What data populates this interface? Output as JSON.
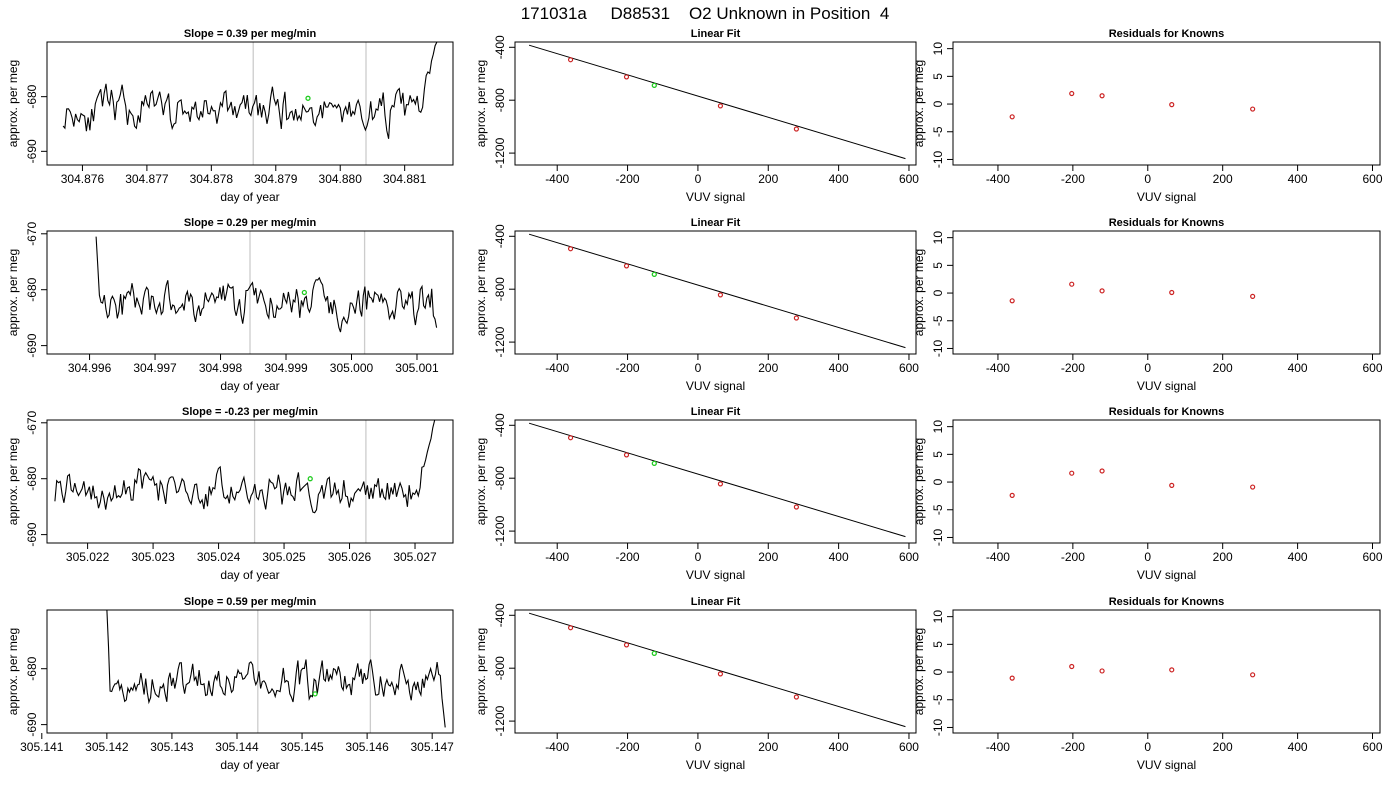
{
  "figure": {
    "title": "171031a     D88531    O2 Unknown in Position  4"
  },
  "colors": {
    "trace": "#000000",
    "marker_unknown": "#22cc22",
    "marker_known": "#cc2222",
    "vline": "#cccccc"
  },
  "chart_data": [
    {
      "type": "line",
      "title": "Slope =  0.39  per meg/min",
      "xlabel": "day of year",
      "ylabel": "approx. per meg",
      "xticks": [
        "304.876",
        "304.877",
        "304.878",
        "304.879",
        "304.880",
        "304.881"
      ],
      "xtick_values": [
        304.876,
        304.877,
        304.878,
        304.879,
        304.88,
        304.881
      ],
      "xlim": [
        304.87545,
        304.88175
      ],
      "yticks": [
        -690,
        -680
      ],
      "ylim": [
        -692.5,
        -670
      ],
      "x_start": 304.8757,
      "x_end": 304.8815,
      "base": -682.5,
      "amplitude": 2.8,
      "seed": 11,
      "head": [],
      "tail_rise": true,
      "tail_end": -669.5,
      "vlines": [
        304.87865,
        304.8804
      ],
      "marker": {
        "x": 304.8795,
        "y": -680.3
      }
    },
    {
      "type": "line",
      "title": "Slope =  0.29  per meg/min",
      "xlabel": "day of year",
      "ylabel": "approx. per meg",
      "xticks": [
        "304.996",
        "304.997",
        "304.998",
        "304.999",
        "305.000",
        "305.001"
      ],
      "xtick_values": [
        304.996,
        304.997,
        304.998,
        304.999,
        305.0,
        305.001
      ],
      "xlim": [
        304.99535,
        305.00155
      ],
      "yticks": [
        -690,
        -680,
        -670
      ],
      "ylim": [
        -691.5,
        -669.5
      ],
      "x_start": 304.9961,
      "x_end": 305.0013,
      "base": -682.5,
      "amplitude": 2.6,
      "seed": 23,
      "head": [
        -670.5,
        -675.5,
        -681.0
      ],
      "tail_rise": false,
      "tail_end": -686.8,
      "vlines": [
        304.99845,
        305.0002
      ],
      "marker": {
        "x": 304.99928,
        "y": -680.5
      }
    },
    {
      "type": "line",
      "title": "Slope =  -0.23  per meg/min",
      "xlabel": "day of year",
      "ylabel": "approx. per meg",
      "xticks": [
        "305.022",
        "305.023",
        "305.024",
        "305.025",
        "305.026",
        "305.027"
      ],
      "xtick_values": [
        305.022,
        305.023,
        305.024,
        305.025,
        305.026,
        305.027
      ],
      "xlim": [
        305.02138,
        305.02758
      ],
      "yticks": [
        -690,
        -680,
        -670
      ],
      "ylim": [
        -691.5,
        -669.5
      ],
      "x_start": 305.0215,
      "x_end": 305.0273,
      "base": -682.0,
      "amplitude": 2.5,
      "seed": 37,
      "head": [],
      "tail_rise": true,
      "tail_end": -669.5,
      "vlines": [
        305.02455,
        305.02625
      ],
      "marker": {
        "x": 305.0254,
        "y": -680.0
      }
    },
    {
      "type": "line",
      "title": "Slope =  0.59  per meg/min",
      "xlabel": "day of year",
      "ylabel": "approx. per meg",
      "xticks": [
        "305.141",
        "305.142",
        "305.143",
        "305.144",
        "305.145",
        "305.146",
        "305.147"
      ],
      "xtick_values": [
        305.141,
        305.142,
        305.143,
        305.144,
        305.145,
        305.146,
        305.147
      ],
      "xlim": [
        305.14108,
        305.14732
      ],
      "yticks": [
        -690,
        -680
      ],
      "ylim": [
        -691.5,
        -669.5
      ],
      "x_start": 305.142,
      "x_end": 305.1472,
      "base": -682.5,
      "amplitude": 2.6,
      "seed": 51,
      "head": [
        -669.5,
        -676.0,
        -684.0
      ],
      "tail_rise": false,
      "tail_end": -690.5,
      "vlines": [
        305.14432,
        305.14605
      ],
      "marker": {
        "x": 305.1452,
        "y": -684.5
      }
    }
  ],
  "linear_fit": {
    "type": "scatter",
    "title": "Linear Fit",
    "xlabel": "VUV signal",
    "ylabel": "approx. per meg",
    "xticks": [
      -400,
      -200,
      0,
      200,
      400,
      600
    ],
    "yticks": [
      -400,
      -800,
      -1200
    ],
    "xlim": [
      -520,
      620
    ],
    "ylim": [
      -1290,
      -360
    ],
    "line": {
      "x": [
        -480,
        590
      ],
      "y": [
        -384,
        -1242
      ]
    },
    "known_points": {
      "x": [
        -362,
        -203,
        64,
        280
      ],
      "y": [
        -494,
        -624,
        -843,
        -1018
      ]
    },
    "unknown_point": {
      "x": -124,
      "y": -688
    }
  },
  "residuals": {
    "type": "scatter",
    "title": "Residuals for Knowns",
    "xlabel": "VUV signal",
    "ylabel": "approx. per meg",
    "xticks": [
      -400,
      -200,
      0,
      200,
      400,
      600
    ],
    "yticks": [
      -10,
      -5,
      0,
      5,
      10
    ],
    "xlim": [
      -520,
      620
    ],
    "ylim": [
      -11,
      11.2
    ],
    "x": [
      -362,
      -203,
      -122,
      64,
      280
    ],
    "rows": [
      [
        -2.3,
        1.9,
        1.5,
        -0.1,
        -0.9
      ],
      [
        -1.4,
        1.6,
        0.4,
        0.1,
        -0.6
      ],
      [
        -2.4,
        1.6,
        2.0,
        -0.6,
        -0.9
      ],
      [
        -1.1,
        1.0,
        0.2,
        0.4,
        -0.5
      ]
    ]
  }
}
